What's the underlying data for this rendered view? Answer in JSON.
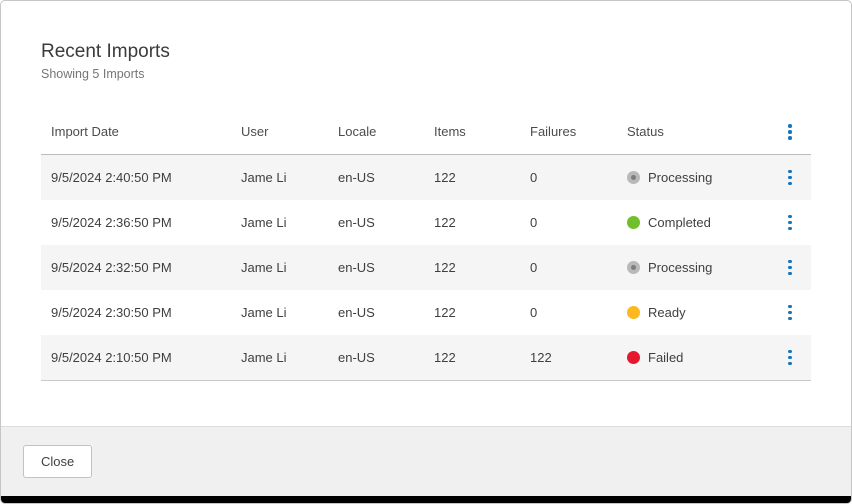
{
  "dialog": {
    "title": "Recent Imports",
    "subtitle": "Showing 5 Imports"
  },
  "table": {
    "columns": [
      "Import Date",
      "User",
      "Locale",
      "Items",
      "Failures",
      "Status"
    ],
    "rows": [
      {
        "import_date": "9/5/2024 2:40:50 PM",
        "user": "Jame Li",
        "locale": "en-US",
        "items": "122",
        "failures": "0",
        "status": "Processing"
      },
      {
        "import_date": "9/5/2024 2:36:50 PM",
        "user": "Jame Li",
        "locale": "en-US",
        "items": "122",
        "failures": "0",
        "status": "Completed"
      },
      {
        "import_date": "9/5/2024 2:32:50 PM",
        "user": "Jame Li",
        "locale": "en-US",
        "items": "122",
        "failures": "0",
        "status": "Processing"
      },
      {
        "import_date": "9/5/2024 2:30:50 PM",
        "user": "Jame Li",
        "locale": "en-US",
        "items": "122",
        "failures": "0",
        "status": "Ready"
      },
      {
        "import_date": "9/5/2024 2:10:50 PM",
        "user": "Jame Li",
        "locale": "en-US",
        "items": "122",
        "failures": "122",
        "status": "Failed"
      }
    ]
  },
  "footer": {
    "close_label": "Close"
  },
  "colors": {
    "accent": "#1476bd",
    "row_stripe": "#f5f5f5",
    "status": {
      "Processing": "#b9b9b9",
      "Processing_inner": "#7d7d7d",
      "Completed": "#72bf2c",
      "Ready": "#fcb81d",
      "Failed": "#e5192d"
    }
  }
}
